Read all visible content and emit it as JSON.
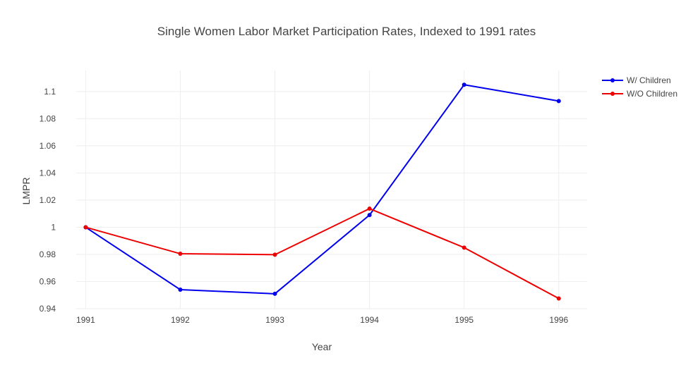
{
  "chart_data": {
    "type": "line",
    "title": "Single Women Labor Market Participation Rates, Indexed to 1991 rates",
    "xlabel": "Year",
    "ylabel": "LMPR",
    "x": [
      1991,
      1992,
      1993,
      1994,
      1995,
      1996
    ],
    "x_tick_labels": [
      "1991",
      "1992",
      "1993",
      "1994",
      "1995",
      "1996"
    ],
    "y_ticks": [
      0.94,
      0.96,
      0.98,
      1,
      1.02,
      1.04,
      1.06,
      1.08,
      1.1
    ],
    "y_tick_labels": [
      "0.94",
      "0.96",
      "0.98",
      "1",
      "1.02",
      "1.04",
      "1.06",
      "1.08",
      "1.1"
    ],
    "xlim": [
      1990.9,
      1996.3
    ],
    "ylim": [
      0.94,
      1.1155
    ],
    "grid": true,
    "legend_position": "top-right",
    "series": [
      {
        "name": "W/ Children",
        "color": "#0000ee",
        "values": [
          1.0,
          0.954,
          0.951,
          1.009,
          1.105,
          1.093
        ]
      },
      {
        "name": "W/O Children",
        "color": "#ee0000",
        "values": [
          1.0,
          0.9805,
          0.9798,
          1.0137,
          0.985,
          0.9475
        ]
      }
    ]
  }
}
